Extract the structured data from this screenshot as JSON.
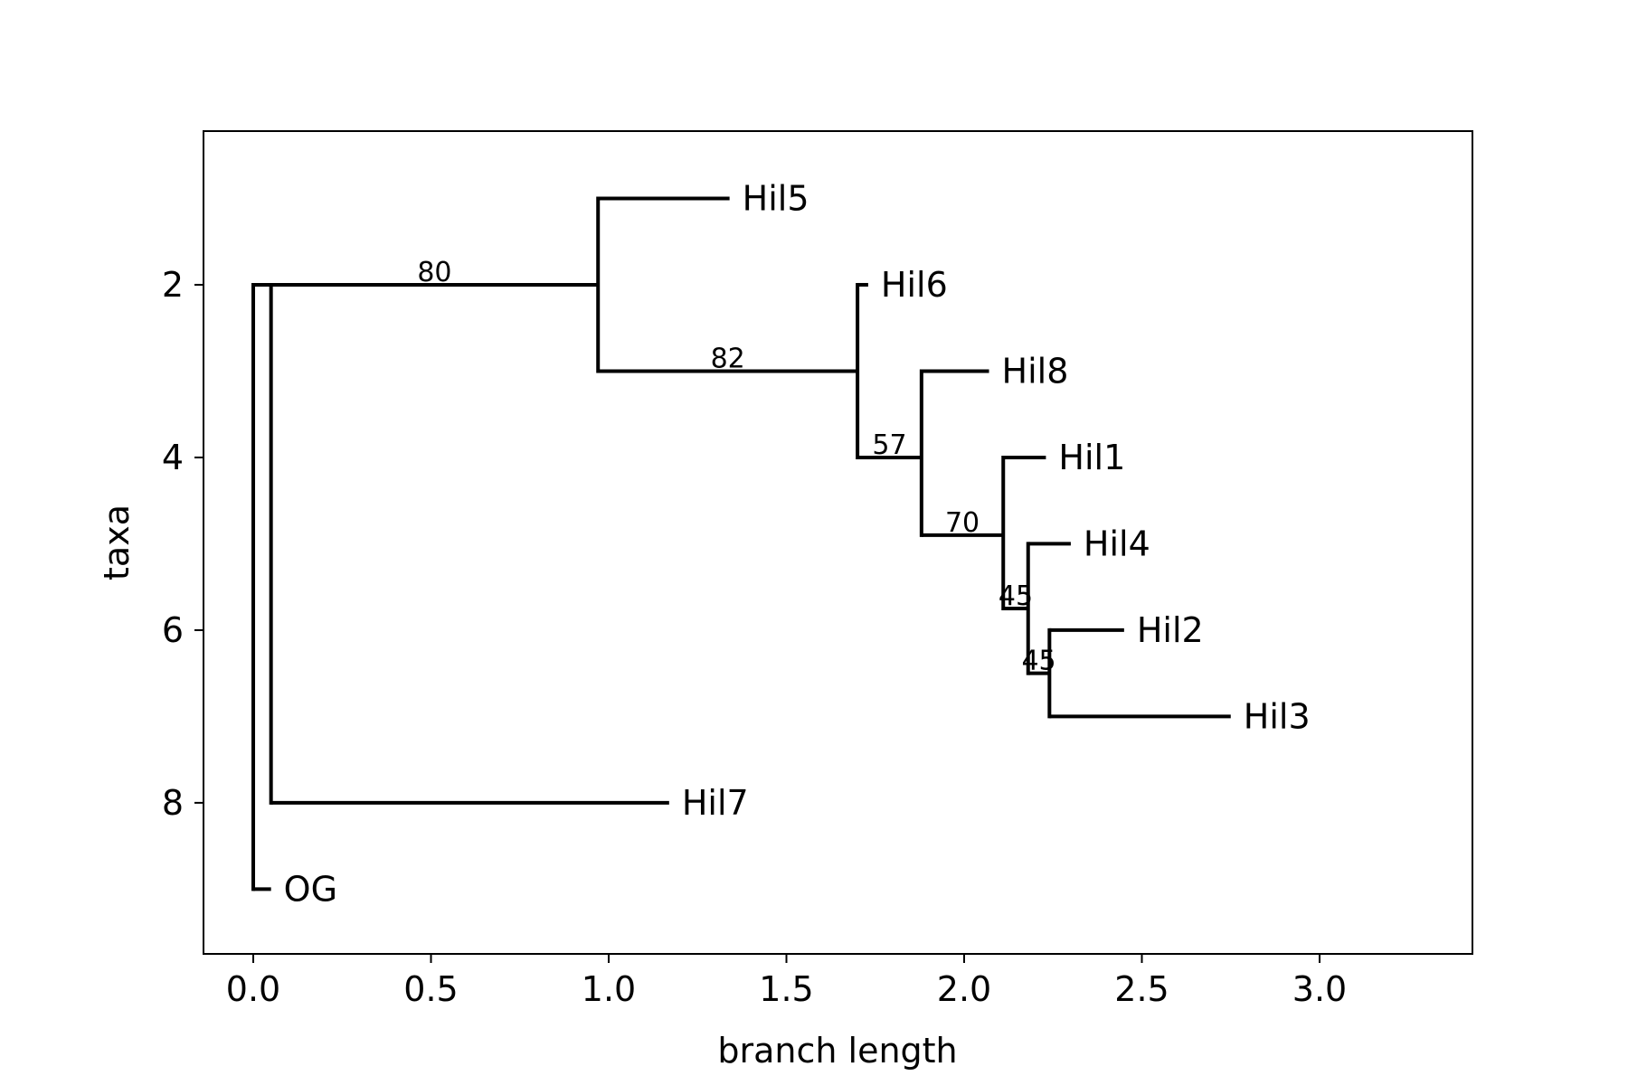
{
  "chart_data": {
    "type": "tree",
    "title": "",
    "xlabel": "branch length",
    "ylabel": "taxa",
    "xlim": [
      -0.14,
      3.43
    ],
    "ylim": [
      9.75,
      0.22
    ],
    "xticks": [
      "0.0",
      "0.5",
      "1.0",
      "1.5",
      "2.0",
      "2.5",
      "3.0"
    ],
    "yticks": [
      "2",
      "4",
      "6",
      "8"
    ],
    "grid": false,
    "line_color": "#000000",
    "leaves": [
      {
        "name": "Hil5",
        "x": 1.34,
        "y": 1
      },
      {
        "name": "Hil6",
        "x": 1.73,
        "y": 2
      },
      {
        "name": "Hil8",
        "x": 2.07,
        "y": 3
      },
      {
        "name": "Hil1",
        "x": 2.23,
        "y": 4
      },
      {
        "name": "Hil4",
        "x": 2.3,
        "y": 5
      },
      {
        "name": "Hil2",
        "x": 2.45,
        "y": 6
      },
      {
        "name": "Hil3",
        "x": 2.75,
        "y": 7
      },
      {
        "name": "Hil7",
        "x": 1.17,
        "y": 8
      },
      {
        "name": "OG",
        "x": 0.05,
        "y": 9
      }
    ],
    "clades": [
      {
        "id": "root",
        "x": 0.0,
        "y": 5.0,
        "parent": null,
        "support": ""
      },
      {
        "id": "ingroup",
        "x": 0.05,
        "y": 2.0,
        "parent": "root",
        "support": ""
      },
      {
        "id": "c80",
        "x": 0.97,
        "y": 2.0,
        "parent": "ingroup",
        "support": "80"
      },
      {
        "id": "c82",
        "x": 1.7,
        "y": 3.0,
        "parent": "c80",
        "support": "82"
      },
      {
        "id": "c57",
        "x": 1.88,
        "y": 4.0,
        "parent": "c82",
        "support": "57"
      },
      {
        "id": "c70",
        "x": 2.11,
        "y": 4.9,
        "parent": "c57",
        "support": "70"
      },
      {
        "id": "c45a",
        "x": 2.18,
        "y": 5.75,
        "parent": "c70",
        "support": "45"
      },
      {
        "id": "c45b",
        "x": 2.24,
        "y": 6.5,
        "parent": "c45a",
        "support": "45"
      }
    ],
    "leaf_parents": {
      "Hil5": "c80",
      "Hil6": "c82",
      "Hil8": "c57",
      "Hil1": "c70",
      "Hil4": "c45a",
      "Hil2": "c45b",
      "Hil3": "c45b",
      "Hil7": "ingroup",
      "OG": "root"
    }
  }
}
